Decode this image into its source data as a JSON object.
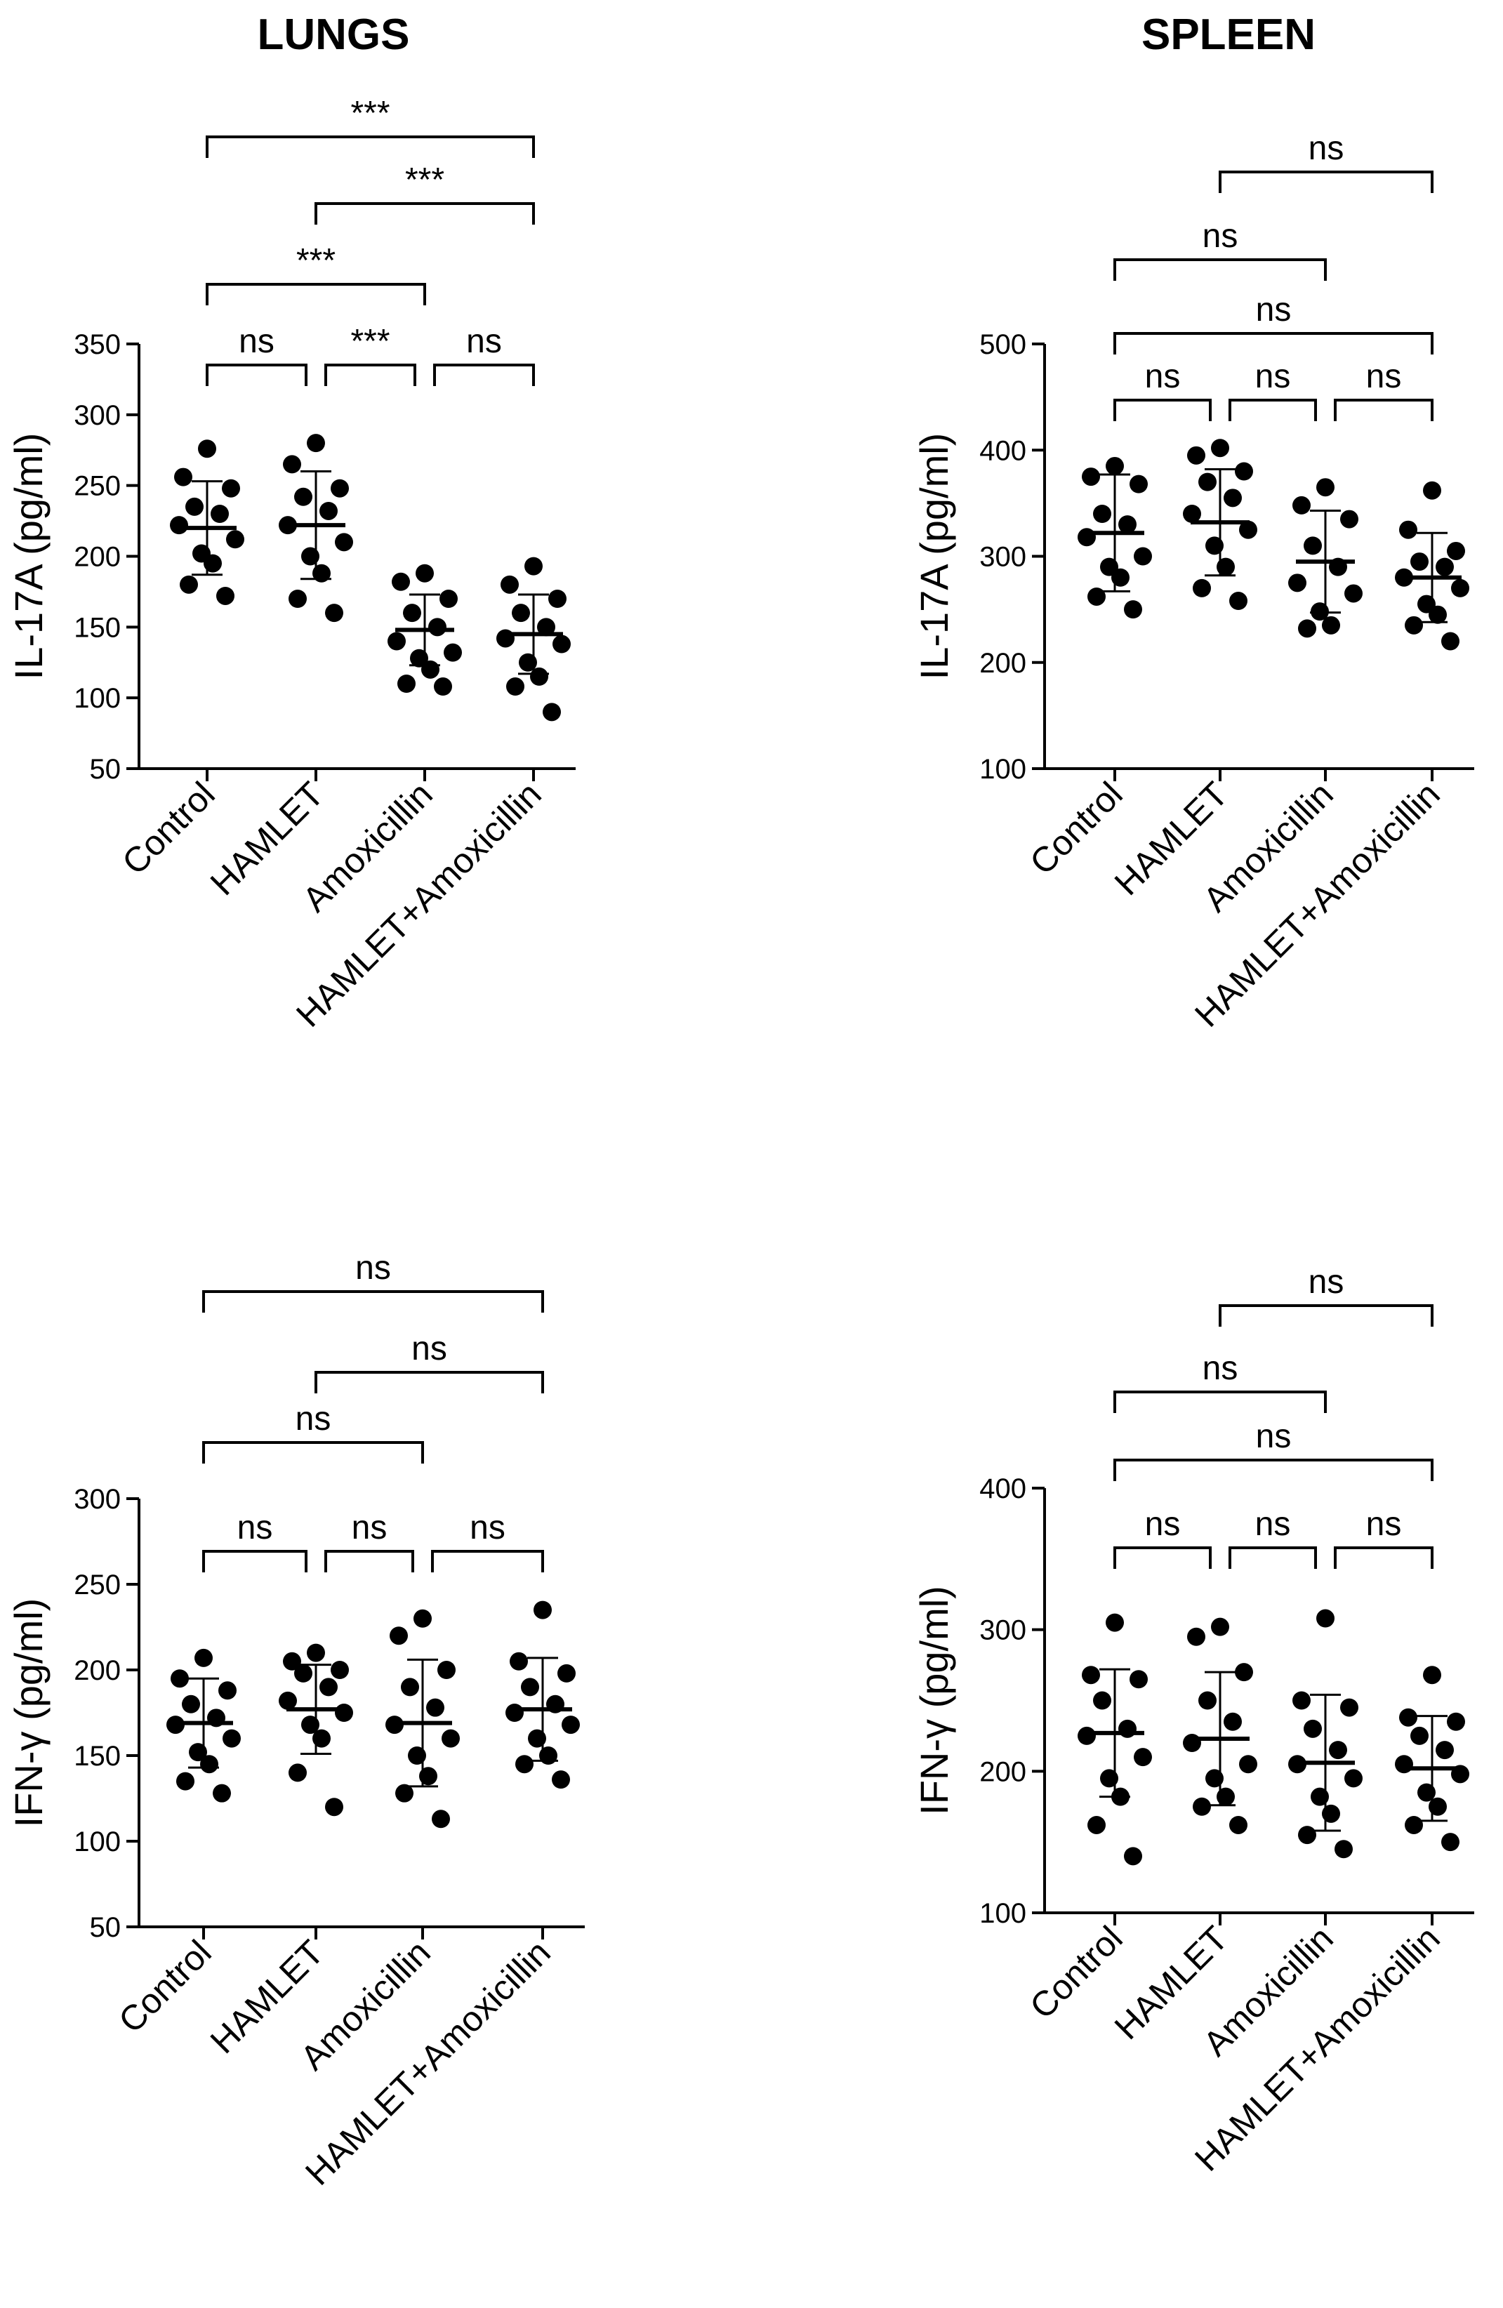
{
  "columns": [
    "LUNGS",
    "SPLEEN"
  ],
  "chart_data": [
    {
      "type": "scatter",
      "panel": "lungs-il17a",
      "ylabel": "IL-17A (pg/ml)",
      "ylim": [
        50,
        350
      ],
      "yticks": [
        50,
        100,
        150,
        200,
        250,
        300,
        350
      ],
      "categories": [
        "Control",
        "HAMLET",
        "Amoxicillin",
        "HAMLET+Amoxicillin"
      ],
      "groups": [
        {
          "mean": 220,
          "sd": 33,
          "points": [
            276,
            256,
            248,
            235,
            230,
            222,
            212,
            202,
            195,
            180,
            172
          ]
        },
        {
          "mean": 222,
          "sd": 38,
          "points": [
            280,
            265,
            248,
            242,
            232,
            222,
            210,
            200,
            188,
            170,
            160
          ]
        },
        {
          "mean": 148,
          "sd": 25,
          "points": [
            188,
            182,
            170,
            160,
            150,
            140,
            132,
            128,
            120,
            110,
            108
          ]
        },
        {
          "mean": 145,
          "sd": 28,
          "points": [
            193,
            180,
            170,
            160,
            150,
            142,
            138,
            125,
            115,
            108,
            90
          ]
        }
      ],
      "significance": [
        {
          "from": 0,
          "to": 3,
          "label": "***"
        },
        {
          "from": 1,
          "to": 3,
          "label": "***"
        },
        {
          "from": 0,
          "to": 2,
          "label": "***"
        },
        {
          "from": 0,
          "to": 1,
          "label": "ns"
        },
        {
          "from": 1,
          "to": 2,
          "label": "***"
        },
        {
          "from": 2,
          "to": 3,
          "label": "ns"
        }
      ]
    },
    {
      "type": "scatter",
      "panel": "spleen-il17a",
      "ylabel": "IL-17A (pg/ml)",
      "ylim": [
        100,
        500
      ],
      "yticks": [
        100,
        200,
        300,
        400,
        500
      ],
      "categories": [
        "Control",
        "HAMLET",
        "Amoxicillin",
        "HAMLET+Amoxicillin"
      ],
      "groups": [
        {
          "mean": 322,
          "sd": 55,
          "points": [
            385,
            375,
            368,
            340,
            330,
            318,
            300,
            290,
            280,
            262,
            250
          ]
        },
        {
          "mean": 332,
          "sd": 50,
          "points": [
            402,
            395,
            380,
            370,
            355,
            340,
            325,
            310,
            290,
            270,
            258
          ]
        },
        {
          "mean": 295,
          "sd": 48,
          "points": [
            365,
            348,
            335,
            310,
            290,
            275,
            265,
            248,
            235,
            232
          ]
        },
        {
          "mean": 280,
          "sd": 42,
          "points": [
            362,
            325,
            305,
            295,
            290,
            280,
            270,
            255,
            245,
            235,
            220
          ]
        }
      ],
      "significance": [
        {
          "from": 1,
          "to": 3,
          "label": "ns"
        },
        {
          "from": 0,
          "to": 2,
          "label": "ns"
        },
        {
          "from": 0,
          "to": 3,
          "label": "ns"
        },
        {
          "from": 0,
          "to": 1,
          "label": "ns"
        },
        {
          "from": 1,
          "to": 2,
          "label": "ns"
        },
        {
          "from": 2,
          "to": 3,
          "label": "ns"
        }
      ]
    },
    {
      "type": "scatter",
      "panel": "lungs-ifng",
      "ylabel": "IFN-γ (pg/ml)",
      "ylim": [
        50,
        300
      ],
      "yticks": [
        50,
        100,
        150,
        200,
        250,
        300
      ],
      "categories": [
        "Control",
        "HAMLET",
        "Amoxicillin",
        "HAMLET+Amoxicillin"
      ],
      "groups": [
        {
          "mean": 169,
          "sd": 26,
          "points": [
            207,
            195,
            188,
            180,
            172,
            168,
            160,
            152,
            145,
            135,
            128
          ]
        },
        {
          "mean": 177,
          "sd": 26,
          "points": [
            210,
            205,
            200,
            198,
            190,
            182,
            175,
            168,
            160,
            140,
            120
          ]
        },
        {
          "mean": 169,
          "sd": 37,
          "points": [
            230,
            220,
            200,
            190,
            178,
            168,
            160,
            150,
            138,
            128,
            113
          ]
        },
        {
          "mean": 177,
          "sd": 30,
          "points": [
            235,
            205,
            198,
            190,
            180,
            175,
            168,
            160,
            150,
            145,
            136
          ]
        }
      ],
      "significance": [
        {
          "from": 0,
          "to": 3,
          "label": "ns"
        },
        {
          "from": 1,
          "to": 3,
          "label": "ns"
        },
        {
          "from": 0,
          "to": 2,
          "label": "ns"
        },
        {
          "from": 0,
          "to": 1,
          "label": "ns"
        },
        {
          "from": 1,
          "to": 2,
          "label": "ns"
        },
        {
          "from": 2,
          "to": 3,
          "label": "ns"
        }
      ]
    },
    {
      "type": "scatter",
      "panel": "spleen-ifng",
      "ylabel": "IFN-γ (pg/ml)",
      "ylim": [
        100,
        400
      ],
      "yticks": [
        100,
        200,
        300,
        400
      ],
      "categories": [
        "Control",
        "HAMLET",
        "Amoxicillin",
        "HAMLET+Amoxicillin"
      ],
      "groups": [
        {
          "mean": 227,
          "sd": 45,
          "points": [
            305,
            268,
            265,
            250,
            230,
            225,
            210,
            195,
            182,
            162,
            140
          ]
        },
        {
          "mean": 223,
          "sd": 47,
          "points": [
            302,
            295,
            270,
            250,
            235,
            220,
            205,
            195,
            182,
            175,
            162
          ]
        },
        {
          "mean": 206,
          "sd": 48,
          "points": [
            308,
            250,
            245,
            230,
            215,
            205,
            195,
            182,
            170,
            155,
            145
          ]
        },
        {
          "mean": 202,
          "sd": 37,
          "points": [
            268,
            238,
            235,
            225,
            215,
            205,
            198,
            185,
            175,
            162,
            150
          ]
        }
      ],
      "significance": [
        {
          "from": 1,
          "to": 3,
          "label": "ns"
        },
        {
          "from": 0,
          "to": 2,
          "label": "ns"
        },
        {
          "from": 0,
          "to": 3,
          "label": "ns"
        },
        {
          "from": 0,
          "to": 1,
          "label": "ns"
        },
        {
          "from": 1,
          "to": 2,
          "label": "ns"
        },
        {
          "from": 2,
          "to": 3,
          "label": "ns"
        }
      ]
    }
  ]
}
